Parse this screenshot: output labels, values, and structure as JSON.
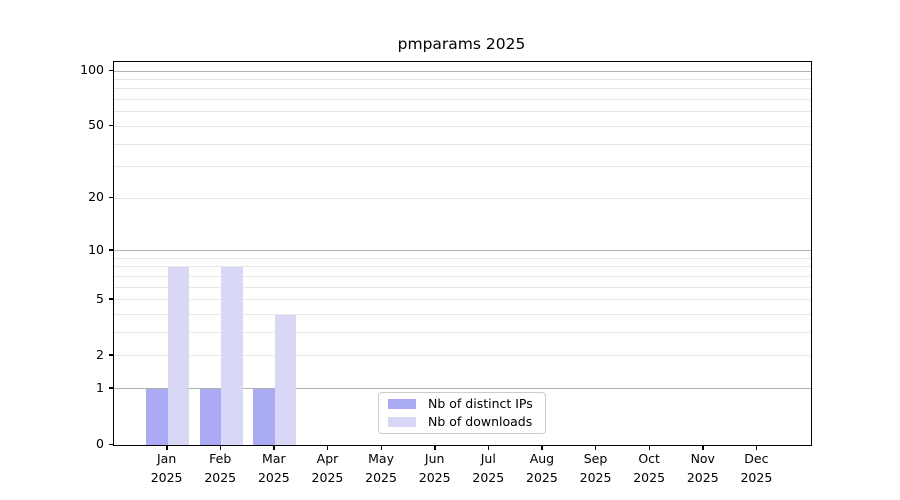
{
  "chart_data": {
    "type": "bar",
    "title": "pmparams 2025",
    "categories": [
      "Jan",
      "Feb",
      "Mar",
      "Apr",
      "May",
      "Jun",
      "Jul",
      "Aug",
      "Sep",
      "Oct",
      "Nov",
      "Dec"
    ],
    "year_label": "2025",
    "series": [
      {
        "name": "Nb of distinct IPs",
        "color": "#a9a9f4",
        "values": [
          1,
          1,
          1,
          0,
          0,
          0,
          0,
          0,
          0,
          0,
          0,
          0
        ]
      },
      {
        "name": "Nb of downloads",
        "color": "#d8d8f6",
        "values": [
          8,
          8,
          4,
          0,
          0,
          0,
          0,
          0,
          0,
          0,
          0,
          0
        ]
      }
    ],
    "xlabel": "",
    "ylabel": "",
    "y_scale": "log10(1+y)",
    "ylim": [
      0,
      112
    ],
    "y_ticks": [
      0,
      1,
      2,
      5,
      10,
      20,
      50,
      100
    ],
    "y_major_gridlines": [
      1,
      10,
      100
    ],
    "y_minor_gridlines": [
      2,
      3,
      4,
      5,
      6,
      7,
      8,
      9,
      20,
      30,
      40,
      50,
      60,
      70,
      80,
      90
    ],
    "grid": true,
    "legend_position": "lower center",
    "colors": {
      "major_grid": "#b2b2b2",
      "minor_grid": "#e7e7e7",
      "axis": "#000000",
      "legend_border": "#cccccc",
      "background": "#ffffff"
    }
  }
}
